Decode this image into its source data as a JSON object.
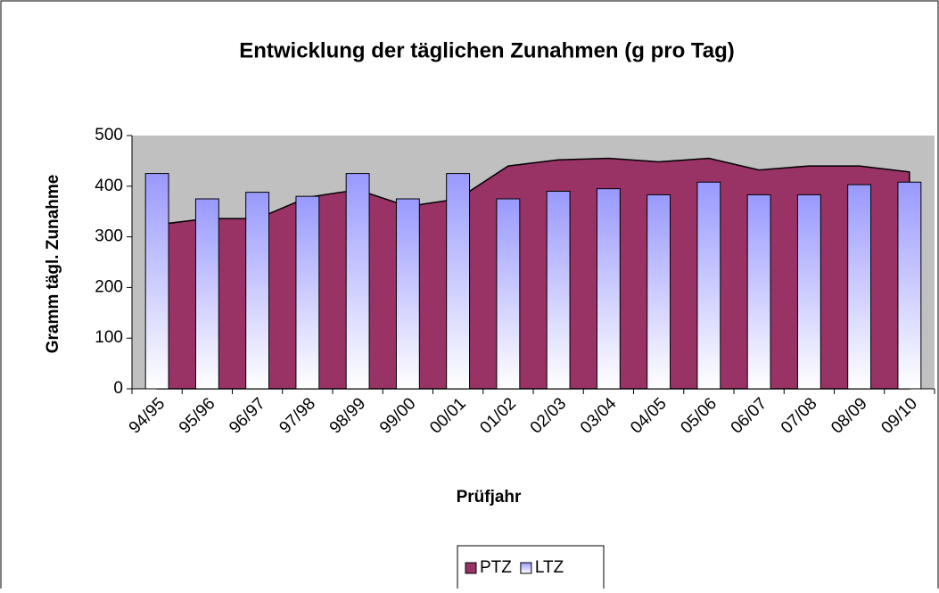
{
  "chart_data": {
    "type": "bar-area",
    "title": "Entwicklung der täglichen Zunahmen (g pro Tag)",
    "x_label": "Prüfjahr",
    "y_label": "Gramm tägl. Zunahme",
    "categories": [
      "94/95",
      "95/96",
      "96/97",
      "97/98",
      "98/99",
      "99/00",
      "00/01",
      "01/02",
      "02/03",
      "03/04",
      "04/05",
      "05/06",
      "06/07",
      "07/08",
      "08/09",
      "09/10"
    ],
    "series": [
      {
        "name": "PTZ",
        "kind": "area",
        "color": "#993366",
        "values": [
          324,
          336,
          336,
          378,
          393,
          360,
          375,
          440,
          452,
          455,
          448,
          455,
          432,
          440,
          440,
          428
        ]
      },
      {
        "name": "LTZ",
        "kind": "bar",
        "color": "#9999ff",
        "values": [
          425,
          375,
          388,
          380,
          425,
          375,
          425,
          375,
          390,
          395,
          383,
          408,
          383,
          383,
          403,
          408
        ]
      }
    ],
    "ylim": [
      0,
      500
    ],
    "yticks": [
      0,
      100,
      200,
      300,
      400,
      500
    ],
    "legend": "bottom",
    "grid": false
  }
}
